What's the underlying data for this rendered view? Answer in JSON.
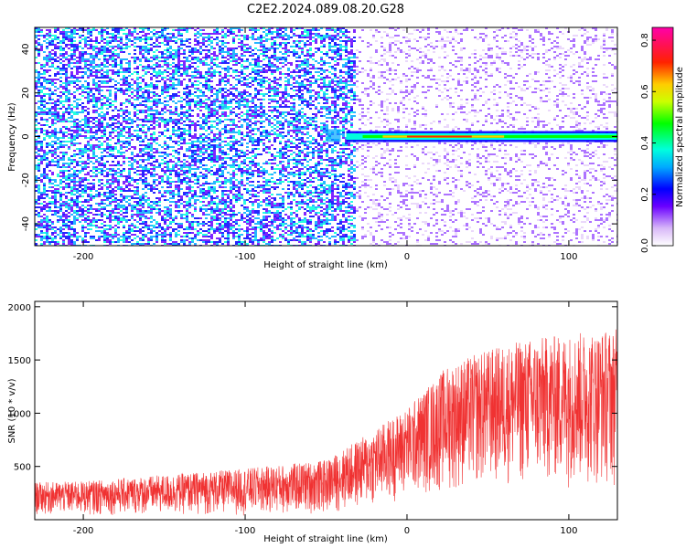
{
  "title": "C2E2.2024.089.08.20.G28",
  "colors": {
    "snr_line": "#f03232",
    "frame": "#000000"
  },
  "chart_data": [
    {
      "type": "heatmap",
      "xlabel": "Height of straight line (km)",
      "ylabel": "Frequency (Hz)",
      "xlim": [
        -230,
        130
      ],
      "ylim": [
        -50,
        50
      ],
      "xticks": [
        -200,
        -100,
        0,
        100
      ],
      "yticks": [
        -40,
        -20,
        0,
        20,
        40
      ],
      "colorbar": {
        "label": "Normalized spectral amplitude",
        "range": [
          0.0,
          0.85
        ],
        "ticks": [
          "0.0",
          "0.2",
          "0.4",
          "0.6",
          "0.8"
        ],
        "colormap": "white-violet-blue-cyan-green-yellow-red-magenta"
      },
      "features": [
        {
          "description": "dense violet noise",
          "x_range": [
            -230,
            -33
          ],
          "level": 0.15
        },
        {
          "description": "faint noise",
          "x_range": [
            -33,
            130
          ],
          "level": 0.05
        },
        {
          "description": "narrow carrier line near 0 Hz",
          "x_range": [
            -50,
            130
          ],
          "y_center": 0,
          "peak": 0.85
        }
      ],
      "grid": false
    },
    {
      "type": "line",
      "xlabel": "Height of straight line (km)",
      "ylabel": "SNR (10 * v/v)",
      "xlim": [
        -230,
        130
      ],
      "ylim": [
        0,
        2050
      ],
      "xticks": [
        -200,
        -100,
        0,
        100
      ],
      "yticks": [
        500,
        1000,
        1500,
        2000
      ],
      "envelope": {
        "x": [
          -230,
          -200,
          -150,
          -100,
          -50,
          -25,
          0,
          25,
          50,
          75,
          100,
          130
        ],
        "min": [
          40,
          40,
          40,
          40,
          50,
          100,
          200,
          250,
          300,
          300,
          300,
          300
        ],
        "max": [
          350,
          360,
          420,
          480,
          560,
          800,
          1050,
          1450,
          1600,
          1700,
          1750,
          1800
        ]
      },
      "grid": false
    }
  ]
}
